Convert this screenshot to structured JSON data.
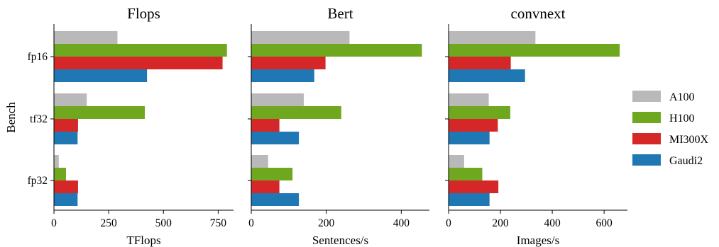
{
  "chart_data": {
    "type": "bar",
    "orientation": "horizontal",
    "ylabel": "Bench",
    "categories": [
      "fp16",
      "tf32",
      "fp32"
    ],
    "legend": {
      "placement": "right",
      "entries": [
        {
          "name": "A100",
          "color": "#b9b9b9"
        },
        {
          "name": "H100",
          "color": "#6fa81e"
        },
        {
          "name": "MI300X",
          "color": "#d62728"
        },
        {
          "name": "Gaudi2",
          "color": "#1f77b4"
        }
      ]
    },
    "grid": false,
    "panels": [
      {
        "title": "Flops",
        "xlabel": "TFlops",
        "xlim": [
          0,
          820
        ],
        "xticks": [
          0,
          250,
          500,
          750
        ],
        "series": [
          {
            "name": "A100",
            "values": [
              290,
              150,
              22
            ]
          },
          {
            "name": "H100",
            "values": [
              790,
              415,
              55
            ]
          },
          {
            "name": "MI300X",
            "values": [
              770,
              110,
              110
            ]
          },
          {
            "name": "Gaudi2",
            "values": [
              425,
              108,
              108
            ]
          }
        ]
      },
      {
        "title": "Bert",
        "xlabel": "Sentences/s",
        "xlim": [
          0,
          475
        ],
        "xticks": [
          0,
          200,
          400
        ],
        "series": [
          {
            "name": "A100",
            "values": [
              262,
              140,
              45
            ]
          },
          {
            "name": "H100",
            "values": [
              455,
              240,
              110
            ]
          },
          {
            "name": "MI300X",
            "values": [
              198,
              75,
              75
            ]
          },
          {
            "name": "Gaudi2",
            "values": [
              168,
              127,
              127
            ]
          }
        ]
      },
      {
        "title": "convnext",
        "xlabel": "Images/s",
        "xlim": [
          0,
          690
        ],
        "xticks": [
          0,
          200,
          400,
          600
        ],
        "series": [
          {
            "name": "A100",
            "values": [
              335,
              155,
              60
            ]
          },
          {
            "name": "H100",
            "values": [
              660,
              238,
              130
            ]
          },
          {
            "name": "MI300X",
            "values": [
              240,
              190,
              192
            ]
          },
          {
            "name": "Gaudi2",
            "values": [
              295,
              158,
              158
            ]
          }
        ]
      }
    ]
  }
}
